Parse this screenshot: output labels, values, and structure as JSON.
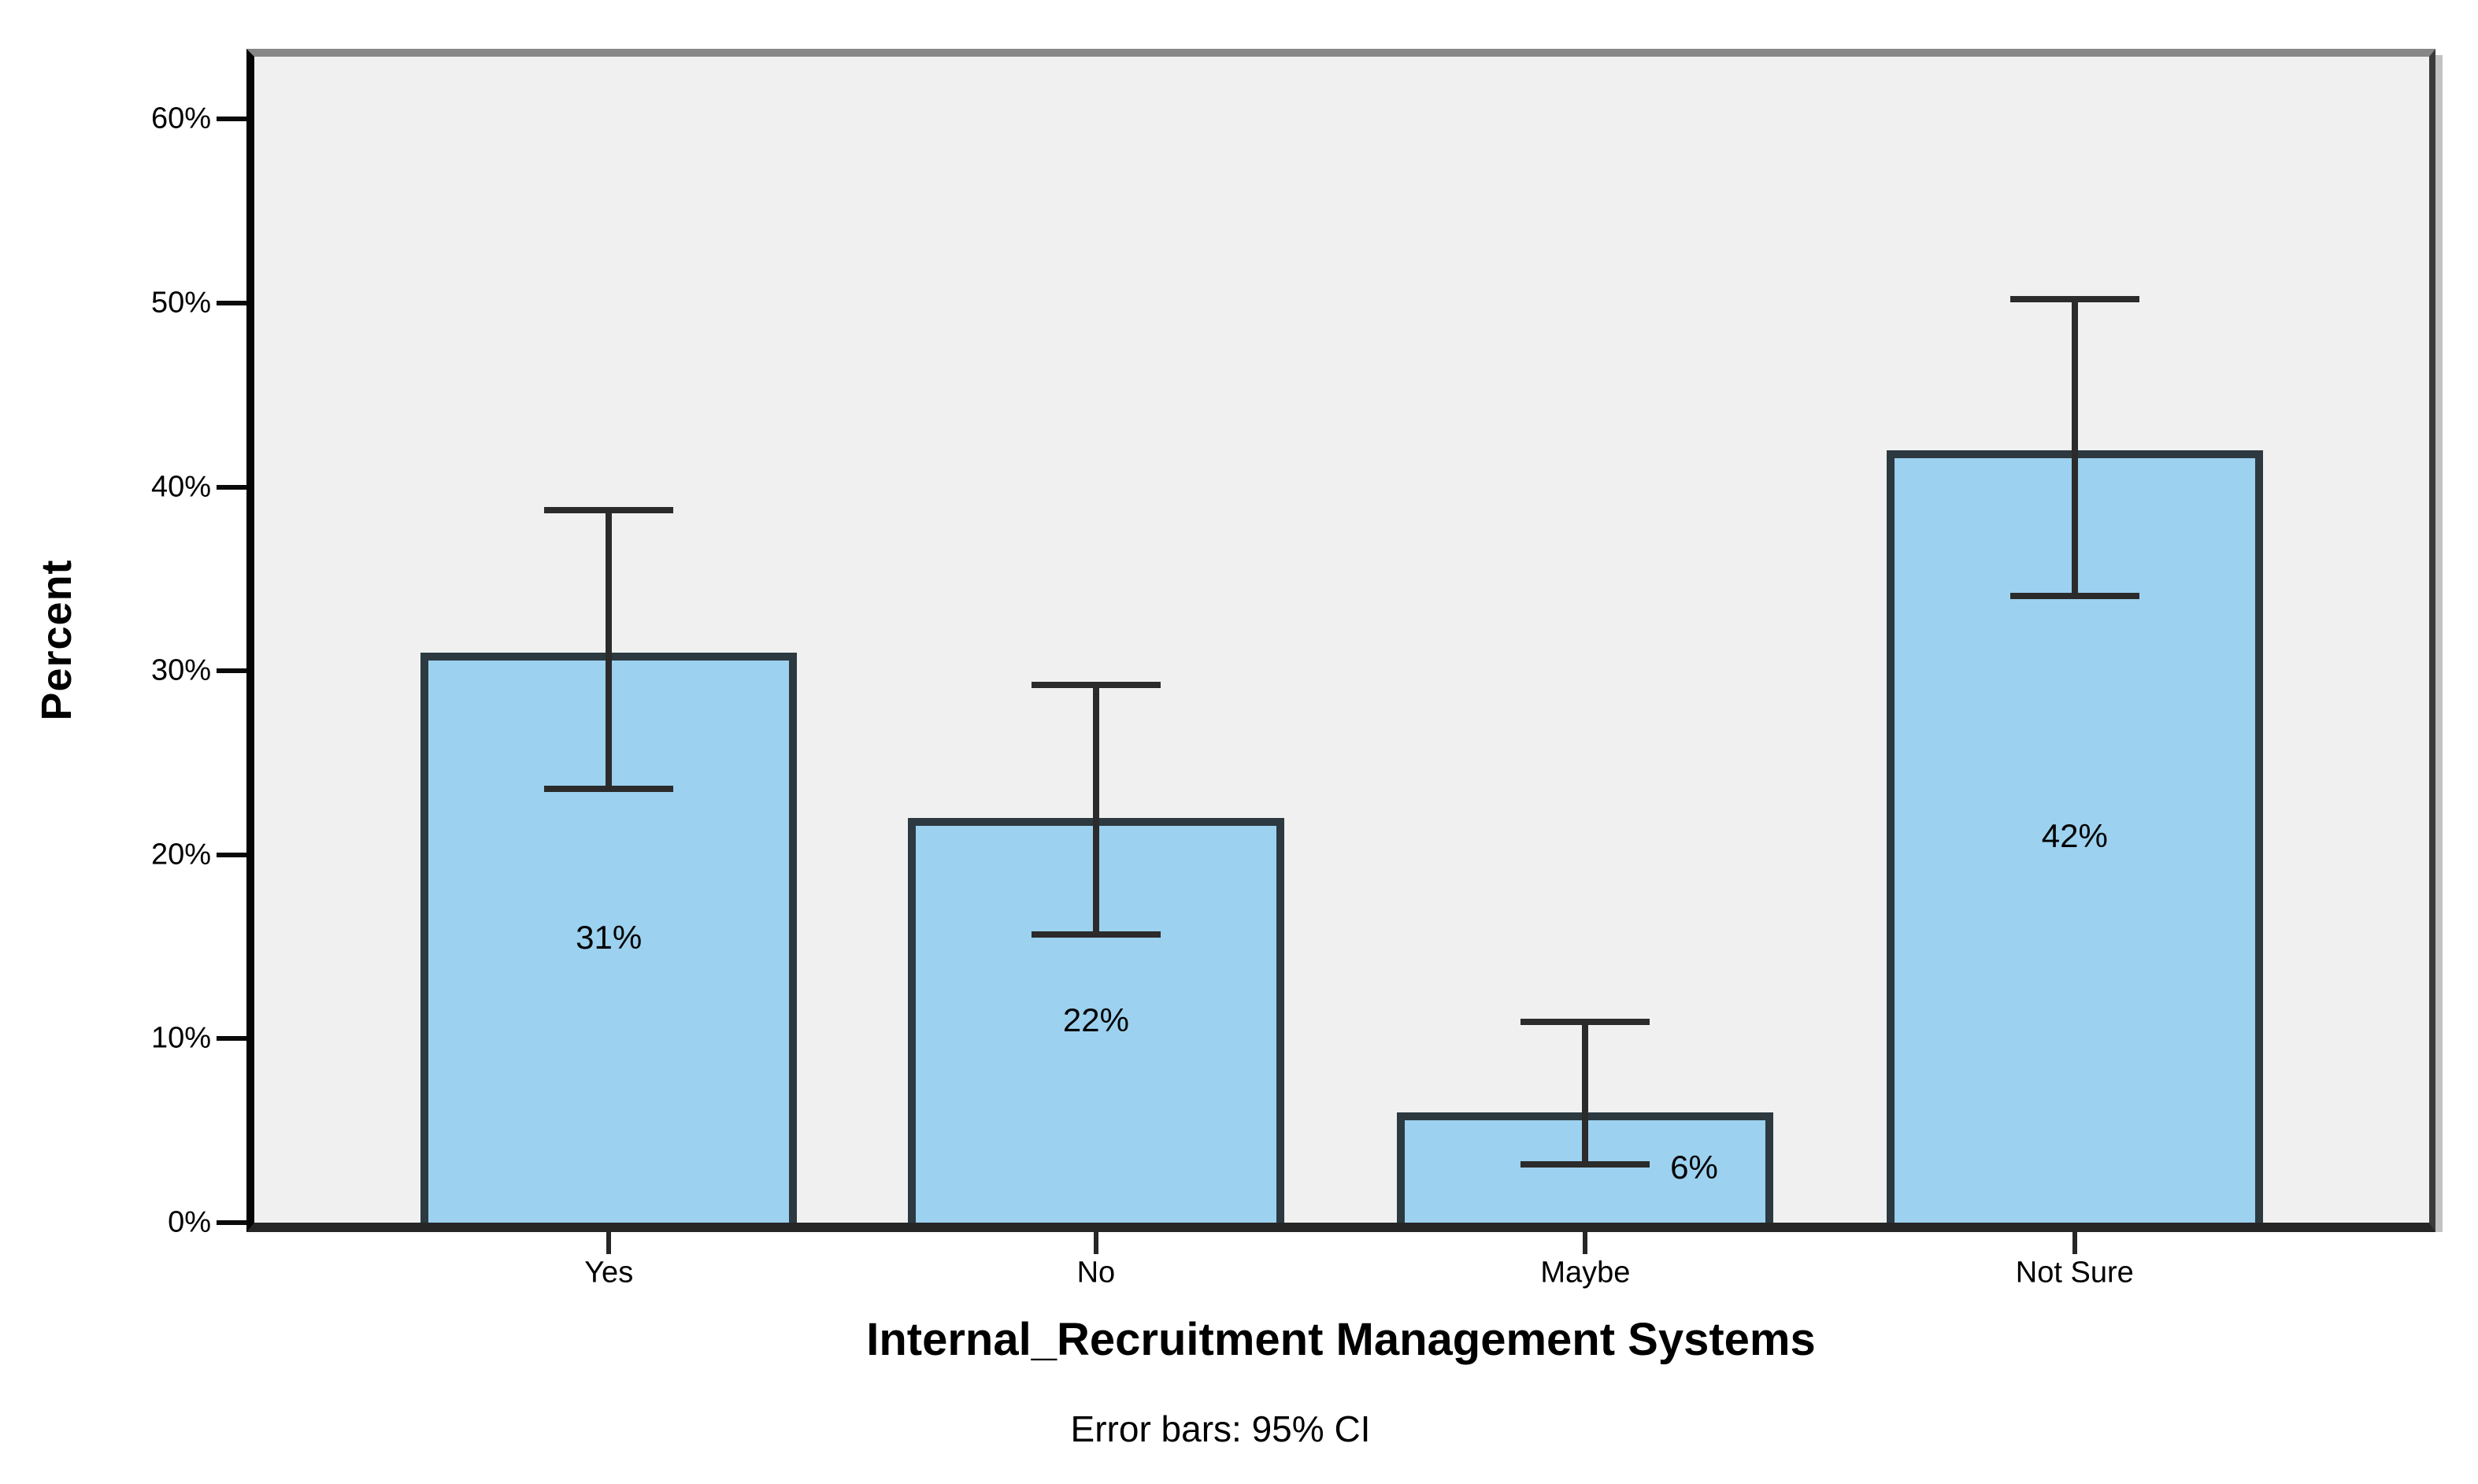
{
  "chart_data": {
    "type": "bar",
    "title": "Internal_Recruitment Management Systems",
    "xlabel": "Internal_Recruitment Management Systems",
    "ylabel": "Percent",
    "footnote": "Error bars: 95% CI",
    "categories": [
      "Yes",
      "No",
      "Maybe",
      "Not Sure"
    ],
    "values": [
      31,
      22,
      6,
      42
    ],
    "bar_labels": [
      "31%",
      "22%",
      "6%",
      "42%"
    ],
    "error_bars": {
      "interval": "95% CI",
      "low": [
        23.4,
        15.5,
        3.0,
        33.9
      ],
      "high": [
        38.9,
        29.4,
        11.1,
        50.4
      ]
    },
    "y_ticks": [
      "0%",
      "10%",
      "20%",
      "30%",
      "40%",
      "50%",
      "60%"
    ],
    "y_tick_values": [
      0,
      10,
      20,
      30,
      40,
      50,
      60
    ],
    "ylim": [
      0,
      63.4
    ],
    "grid": false,
    "legend": null,
    "label_pos": [
      {
        "y": 15.5,
        "dx": 0
      },
      {
        "y": 11.0,
        "dx": 0
      },
      {
        "y": 3.0,
        "dx": 5.0
      },
      {
        "y": 21.0,
        "dx": 0
      }
    ],
    "layout": {
      "bar_centers_pct": [
        16.3,
        38.7,
        61.2,
        83.7
      ],
      "bar_width_pct": 17.3
    },
    "colors": {
      "bar_fill": "#9cd1ef",
      "bar_border": "#2c3940",
      "error_bar": "#2b2b2b",
      "plot_bg": "#f0f0f0",
      "canvas_bg": "#ffffff",
      "axis": "#050505",
      "text": "#000000"
    }
  }
}
